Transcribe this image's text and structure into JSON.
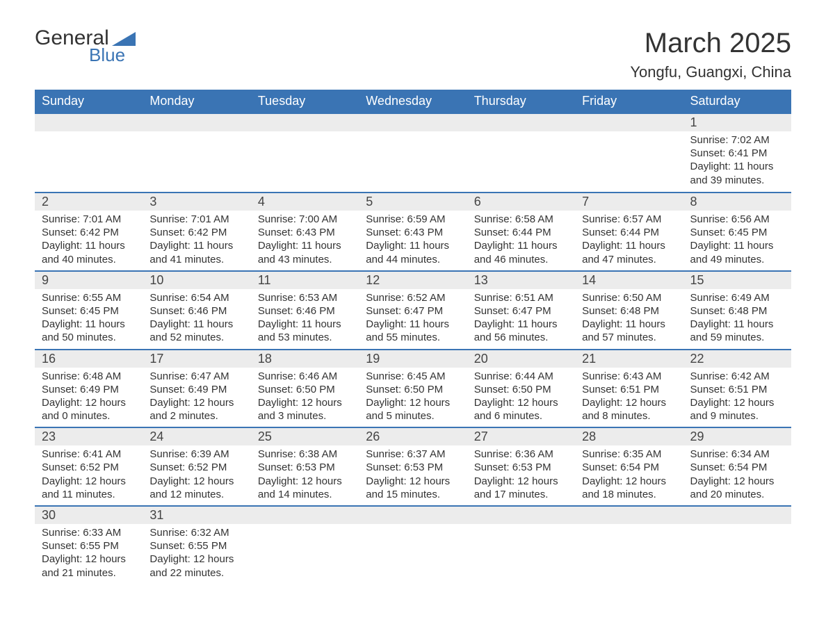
{
  "brand": {
    "general": "General",
    "blue": "Blue",
    "shape_color": "#3a74b4"
  },
  "title": {
    "month": "March 2025",
    "location": "Yongfu, Guangxi, China"
  },
  "dow": [
    "Sunday",
    "Monday",
    "Tuesday",
    "Wednesday",
    "Thursday",
    "Friday",
    "Saturday"
  ],
  "colors": {
    "header_bg": "#3a74b4",
    "header_fg": "#ffffff",
    "row_stripe": "#ececec",
    "rule": "#3a74b4"
  },
  "weeks": [
    [
      null,
      null,
      null,
      null,
      null,
      null,
      {
        "n": "1",
        "sr": "Sunrise: 7:02 AM",
        "ss": "Sunset: 6:41 PM",
        "d1": "Daylight: 11 hours",
        "d2": "and 39 minutes."
      }
    ],
    [
      {
        "n": "2",
        "sr": "Sunrise: 7:01 AM",
        "ss": "Sunset: 6:42 PM",
        "d1": "Daylight: 11 hours",
        "d2": "and 40 minutes."
      },
      {
        "n": "3",
        "sr": "Sunrise: 7:01 AM",
        "ss": "Sunset: 6:42 PM",
        "d1": "Daylight: 11 hours",
        "d2": "and 41 minutes."
      },
      {
        "n": "4",
        "sr": "Sunrise: 7:00 AM",
        "ss": "Sunset: 6:43 PM",
        "d1": "Daylight: 11 hours",
        "d2": "and 43 minutes."
      },
      {
        "n": "5",
        "sr": "Sunrise: 6:59 AM",
        "ss": "Sunset: 6:43 PM",
        "d1": "Daylight: 11 hours",
        "d2": "and 44 minutes."
      },
      {
        "n": "6",
        "sr": "Sunrise: 6:58 AM",
        "ss": "Sunset: 6:44 PM",
        "d1": "Daylight: 11 hours",
        "d2": "and 46 minutes."
      },
      {
        "n": "7",
        "sr": "Sunrise: 6:57 AM",
        "ss": "Sunset: 6:44 PM",
        "d1": "Daylight: 11 hours",
        "d2": "and 47 minutes."
      },
      {
        "n": "8",
        "sr": "Sunrise: 6:56 AM",
        "ss": "Sunset: 6:45 PM",
        "d1": "Daylight: 11 hours",
        "d2": "and 49 minutes."
      }
    ],
    [
      {
        "n": "9",
        "sr": "Sunrise: 6:55 AM",
        "ss": "Sunset: 6:45 PM",
        "d1": "Daylight: 11 hours",
        "d2": "and 50 minutes."
      },
      {
        "n": "10",
        "sr": "Sunrise: 6:54 AM",
        "ss": "Sunset: 6:46 PM",
        "d1": "Daylight: 11 hours",
        "d2": "and 52 minutes."
      },
      {
        "n": "11",
        "sr": "Sunrise: 6:53 AM",
        "ss": "Sunset: 6:46 PM",
        "d1": "Daylight: 11 hours",
        "d2": "and 53 minutes."
      },
      {
        "n": "12",
        "sr": "Sunrise: 6:52 AM",
        "ss": "Sunset: 6:47 PM",
        "d1": "Daylight: 11 hours",
        "d2": "and 55 minutes."
      },
      {
        "n": "13",
        "sr": "Sunrise: 6:51 AM",
        "ss": "Sunset: 6:47 PM",
        "d1": "Daylight: 11 hours",
        "d2": "and 56 minutes."
      },
      {
        "n": "14",
        "sr": "Sunrise: 6:50 AM",
        "ss": "Sunset: 6:48 PM",
        "d1": "Daylight: 11 hours",
        "d2": "and 57 minutes."
      },
      {
        "n": "15",
        "sr": "Sunrise: 6:49 AM",
        "ss": "Sunset: 6:48 PM",
        "d1": "Daylight: 11 hours",
        "d2": "and 59 minutes."
      }
    ],
    [
      {
        "n": "16",
        "sr": "Sunrise: 6:48 AM",
        "ss": "Sunset: 6:49 PM",
        "d1": "Daylight: 12 hours",
        "d2": "and 0 minutes."
      },
      {
        "n": "17",
        "sr": "Sunrise: 6:47 AM",
        "ss": "Sunset: 6:49 PM",
        "d1": "Daylight: 12 hours",
        "d2": "and 2 minutes."
      },
      {
        "n": "18",
        "sr": "Sunrise: 6:46 AM",
        "ss": "Sunset: 6:50 PM",
        "d1": "Daylight: 12 hours",
        "d2": "and 3 minutes."
      },
      {
        "n": "19",
        "sr": "Sunrise: 6:45 AM",
        "ss": "Sunset: 6:50 PM",
        "d1": "Daylight: 12 hours",
        "d2": "and 5 minutes."
      },
      {
        "n": "20",
        "sr": "Sunrise: 6:44 AM",
        "ss": "Sunset: 6:50 PM",
        "d1": "Daylight: 12 hours",
        "d2": "and 6 minutes."
      },
      {
        "n": "21",
        "sr": "Sunrise: 6:43 AM",
        "ss": "Sunset: 6:51 PM",
        "d1": "Daylight: 12 hours",
        "d2": "and 8 minutes."
      },
      {
        "n": "22",
        "sr": "Sunrise: 6:42 AM",
        "ss": "Sunset: 6:51 PM",
        "d1": "Daylight: 12 hours",
        "d2": "and 9 minutes."
      }
    ],
    [
      {
        "n": "23",
        "sr": "Sunrise: 6:41 AM",
        "ss": "Sunset: 6:52 PM",
        "d1": "Daylight: 12 hours",
        "d2": "and 11 minutes."
      },
      {
        "n": "24",
        "sr": "Sunrise: 6:39 AM",
        "ss": "Sunset: 6:52 PM",
        "d1": "Daylight: 12 hours",
        "d2": "and 12 minutes."
      },
      {
        "n": "25",
        "sr": "Sunrise: 6:38 AM",
        "ss": "Sunset: 6:53 PM",
        "d1": "Daylight: 12 hours",
        "d2": "and 14 minutes."
      },
      {
        "n": "26",
        "sr": "Sunrise: 6:37 AM",
        "ss": "Sunset: 6:53 PM",
        "d1": "Daylight: 12 hours",
        "d2": "and 15 minutes."
      },
      {
        "n": "27",
        "sr": "Sunrise: 6:36 AM",
        "ss": "Sunset: 6:53 PM",
        "d1": "Daylight: 12 hours",
        "d2": "and 17 minutes."
      },
      {
        "n": "28",
        "sr": "Sunrise: 6:35 AM",
        "ss": "Sunset: 6:54 PM",
        "d1": "Daylight: 12 hours",
        "d2": "and 18 minutes."
      },
      {
        "n": "29",
        "sr": "Sunrise: 6:34 AM",
        "ss": "Sunset: 6:54 PM",
        "d1": "Daylight: 12 hours",
        "d2": "and 20 minutes."
      }
    ],
    [
      {
        "n": "30",
        "sr": "Sunrise: 6:33 AM",
        "ss": "Sunset: 6:55 PM",
        "d1": "Daylight: 12 hours",
        "d2": "and 21 minutes."
      },
      {
        "n": "31",
        "sr": "Sunrise: 6:32 AM",
        "ss": "Sunset: 6:55 PM",
        "d1": "Daylight: 12 hours",
        "d2": "and 22 minutes."
      },
      null,
      null,
      null,
      null,
      null
    ]
  ]
}
